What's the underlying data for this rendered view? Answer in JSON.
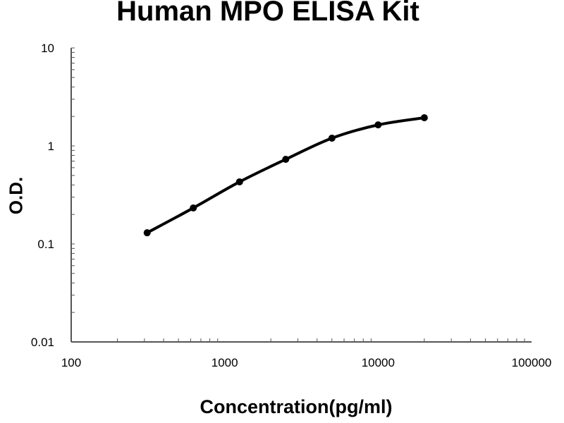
{
  "chart_data": {
    "type": "line",
    "title": "Human MPO ELISA Kit",
    "xlabel": "Concentration(pg/ml)",
    "ylabel": "O.D.",
    "x_scale": "log",
    "y_scale": "log",
    "xlim": [
      100,
      100000
    ],
    "ylim": [
      0.01,
      10
    ],
    "x_ticks": [
      "100",
      "1000",
      "10000",
      "100000"
    ],
    "y_ticks": [
      "10",
      "1",
      "0.1",
      "0.01"
    ],
    "grid": false,
    "series": [
      {
        "x": [
          312.5,
          625,
          1250,
          2500,
          5000,
          10000,
          20000
        ],
        "y": [
          0.13,
          0.233,
          0.43,
          0.73,
          1.2,
          1.64,
          1.94
        ],
        "color": "#000000",
        "marker": "circle"
      }
    ]
  }
}
